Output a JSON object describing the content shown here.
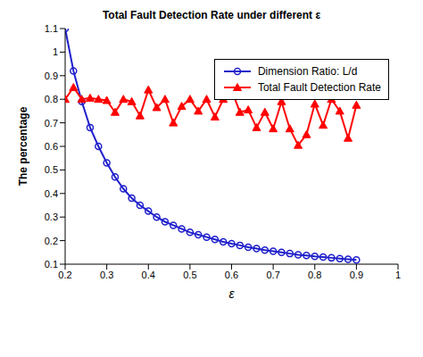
{
  "chart_data": {
    "type": "line",
    "title": "Total Fault Detection Rate under different ε",
    "x_label": "ε",
    "y_label": "The percentage",
    "x": [
      0.2,
      0.22,
      0.24,
      0.26,
      0.28,
      0.3,
      0.32,
      0.34,
      0.36,
      0.38,
      0.4,
      0.42,
      0.44,
      0.46,
      0.48,
      0.5,
      0.52,
      0.54,
      0.56,
      0.58,
      0.6,
      0.62,
      0.64,
      0.66,
      0.68,
      0.7,
      0.72,
      0.74,
      0.76,
      0.78,
      0.8,
      0.82,
      0.84,
      0.86,
      0.88,
      0.9
    ],
    "series": [
      {
        "name": "Dimension Ratio: L/d",
        "color": "#1f1fcc",
        "marker": "circle",
        "values": [
          1.1,
          0.92,
          0.79,
          0.68,
          0.6,
          0.53,
          0.47,
          0.42,
          0.38,
          0.35,
          0.325,
          0.3,
          0.28,
          0.265,
          0.25,
          0.235,
          0.225,
          0.215,
          0.205,
          0.195,
          0.187,
          0.18,
          0.172,
          0.166,
          0.16,
          0.155,
          0.15,
          0.145,
          0.14,
          0.137,
          0.133,
          0.13,
          0.127,
          0.124,
          0.121,
          0.118
        ]
      },
      {
        "name": "Total Fault Detection Rate",
        "color": "#ff0000",
        "marker": "triangle",
        "values": [
          0.8,
          0.85,
          0.8,
          0.805,
          0.8,
          0.795,
          0.745,
          0.8,
          0.79,
          0.73,
          0.84,
          0.765,
          0.8,
          0.7,
          0.77,
          0.8,
          0.75,
          0.8,
          0.725,
          0.8,
          0.84,
          0.745,
          0.755,
          0.68,
          0.745,
          0.675,
          0.79,
          0.675,
          0.605,
          0.65,
          0.78,
          0.69,
          0.8,
          0.75,
          0.635,
          0.775
        ]
      }
    ],
    "xlim": [
      0.2,
      1
    ],
    "xticks": [
      0.2,
      0.3,
      0.4,
      0.5,
      0.6,
      0.7,
      0.8,
      0.9,
      1
    ],
    "ylim": [
      0.1,
      1.1
    ],
    "yticks": [
      0.1,
      0.2,
      0.3,
      0.4,
      0.5,
      0.6,
      0.7,
      0.8,
      0.9,
      1,
      1.1
    ],
    "grid": false,
    "legend": "upper right"
  }
}
